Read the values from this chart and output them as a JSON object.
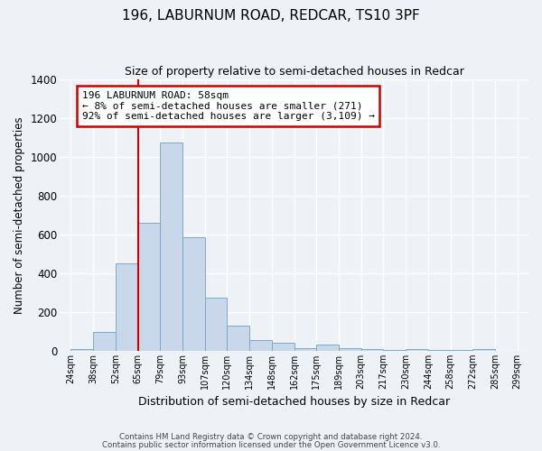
{
  "title1": "196, LABURNUM ROAD, REDCAR, TS10 3PF",
  "title2": "Size of property relative to semi-detached houses in Redcar",
  "xlabel": "Distribution of semi-detached houses by size in Redcar",
  "ylabel": "Number of semi-detached properties",
  "bin_labels": [
    "24sqm",
    "38sqm",
    "52sqm",
    "65sqm",
    "79sqm",
    "93sqm",
    "107sqm",
    "120sqm",
    "134sqm",
    "148sqm",
    "162sqm",
    "175sqm",
    "189sqm",
    "203sqm",
    "217sqm",
    "230sqm",
    "244sqm",
    "258sqm",
    "272sqm",
    "285sqm",
    "299sqm"
  ],
  "bar_heights": [
    10,
    95,
    450,
    660,
    1075,
    585,
    275,
    130,
    55,
    40,
    15,
    30,
    15,
    10,
    5,
    10,
    5,
    5,
    10,
    0
  ],
  "bar_color": "#c8d8ea",
  "bar_edge_color": "#7aaac8",
  "background_color": "#eef2f7",
  "grid_color": "#ffffff",
  "annotation_title": "196 LABURNUM ROAD: 58sqm",
  "annotation_line1": "← 8% of semi-detached houses are smaller (271)",
  "annotation_line2": "92% of semi-detached houses are larger (3,109) →",
  "annotation_box_color": "#ffffff",
  "annotation_border_color": "#cc0000",
  "red_line_color": "#cc0000",
  "footer1": "Contains HM Land Registry data © Crown copyright and database right 2024.",
  "footer2": "Contains public sector information licensed under the Open Government Licence v3.0.",
  "ylim": [
    0,
    1400
  ],
  "yticks": [
    0,
    200,
    400,
    600,
    800,
    1000,
    1200,
    1400
  ],
  "red_line_bin_edge": 3,
  "n_bins": 20,
  "n_labels": 21
}
